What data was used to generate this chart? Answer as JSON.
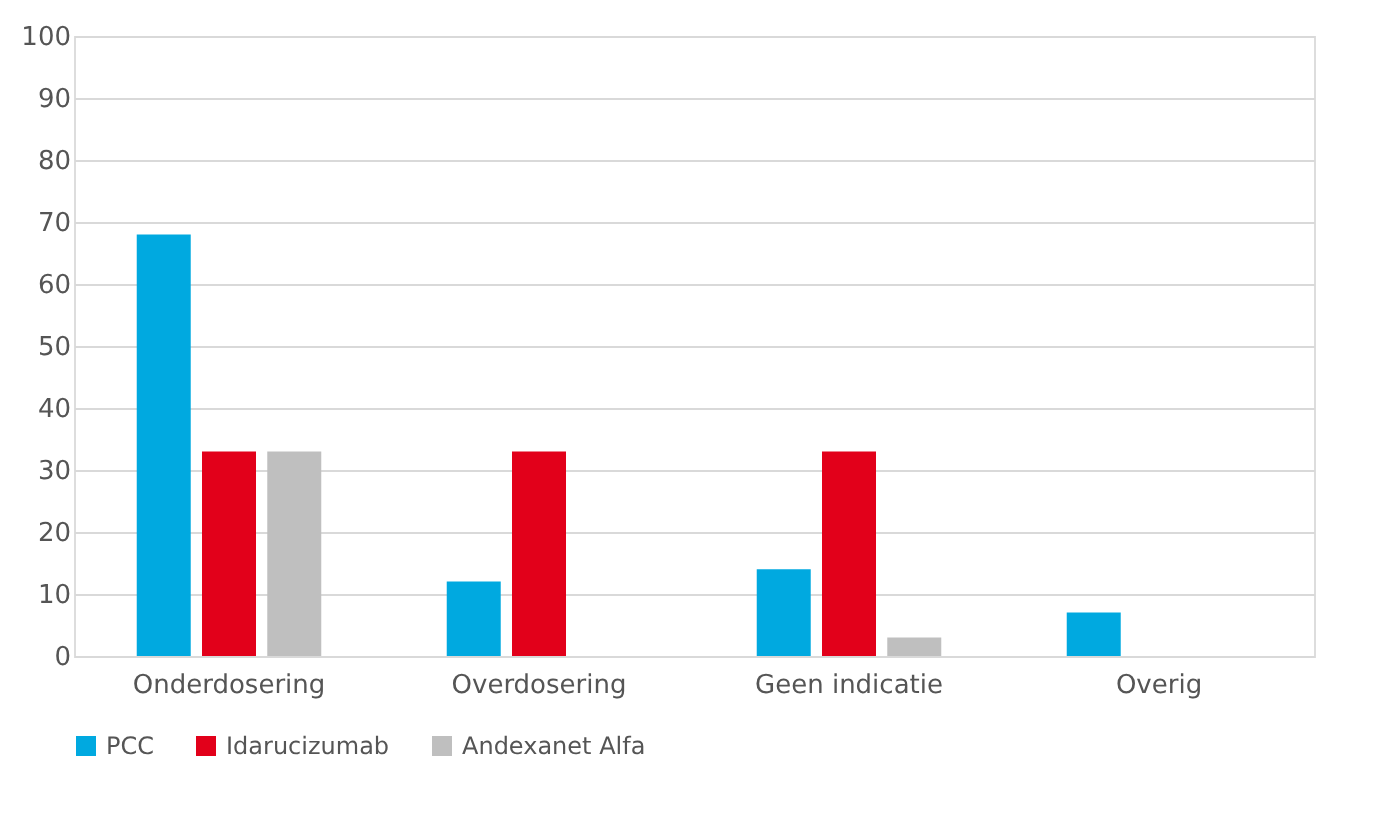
{
  "chart_data": {
    "type": "bar",
    "categories": [
      "Onderdosering",
      "Overdosering",
      "Geen indicatie",
      "Overig"
    ],
    "series": [
      {
        "name": "PCC",
        "color": "#00a9e0",
        "values": [
          68,
          12,
          14,
          7
        ]
      },
      {
        "name": "Idarucizumab",
        "color": "#e2001a",
        "values": [
          33,
          33,
          33,
          0
        ]
      },
      {
        "name": "Andexanet Alfa",
        "color": "#bfbfbf",
        "values": [
          33,
          0,
          3,
          0
        ]
      }
    ],
    "ylim": [
      0,
      100
    ],
    "yticks": [
      0,
      10,
      20,
      30,
      40,
      50,
      60,
      70,
      80,
      90,
      100
    ],
    "grid": "y",
    "legend": "bottom"
  }
}
